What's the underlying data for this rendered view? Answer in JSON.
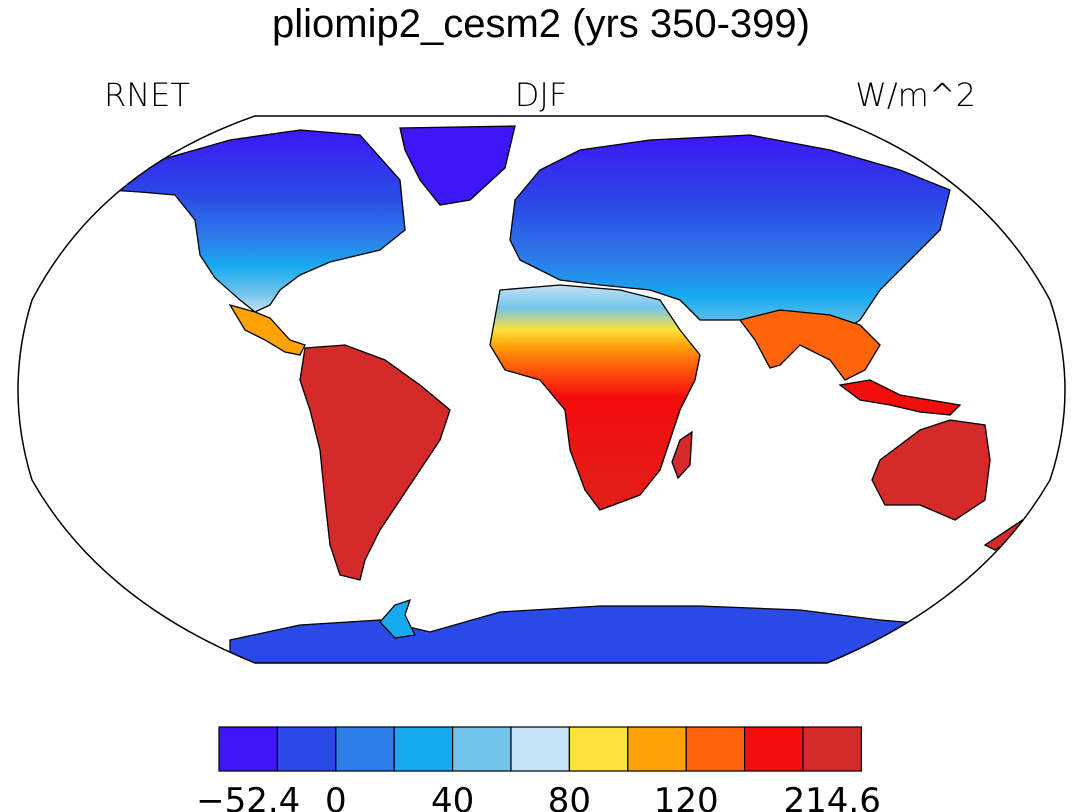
{
  "title": "pliomip2_cesm2 (yrs 350-399)",
  "labels": {
    "left": "RNET",
    "center": "DJF",
    "right": "W/m^2"
  },
  "colorbar": {
    "colors": [
      "#3d17f5",
      "#2a49e6",
      "#2d7ee9",
      "#17aaf0",
      "#72c4ea",
      "#c5e3f5",
      "#fce23a",
      "#fea20a",
      "#fe650a",
      "#f40d0d",
      "#d42a2a"
    ],
    "tick_labels": [
      "−52.4",
      "0",
      "40",
      "80",
      "120",
      "214.6"
    ]
  },
  "regions": [
    {
      "name": "North America",
      "color": "#2a49e6"
    },
    {
      "name": "South America",
      "color": "#d42a2a"
    },
    {
      "name": "Africa",
      "color": "#f40d0d"
    },
    {
      "name": "Eurasia",
      "color": "#2a49e6"
    },
    {
      "name": "Australia",
      "color": "#d42a2a"
    },
    {
      "name": "Antarctica",
      "color": "#2a49e6"
    },
    {
      "name": "Greenland",
      "color": "#3d17f5"
    }
  ]
}
